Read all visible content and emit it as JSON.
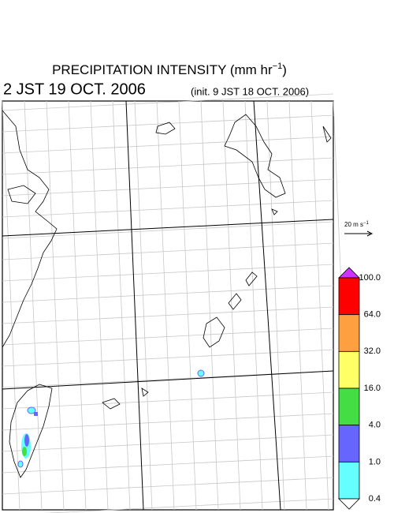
{
  "header": {
    "title": {
      "text": "PRECIPITATION INTENSITY (mm hr",
      "superscript": "−1",
      "suffix": ")"
    },
    "valid_time": "2 JST 19 OCT. 2006",
    "init_time": "(init. 9 JST 18 OCT. 2006)"
  },
  "vector_legend": {
    "text": "20 m s",
    "superscript": "−1"
  },
  "colorbar": {
    "labels": [
      "100.0",
      "64.0",
      "32.0",
      "16.0",
      "4.0",
      "1.0",
      "0.4"
    ],
    "colors": [
      "#cc33ff",
      "#ff0000",
      "#ffa040",
      "#ffff66",
      "#44dd44",
      "#6666ff",
      "#66ffff",
      "#ffffff"
    ]
  }
}
